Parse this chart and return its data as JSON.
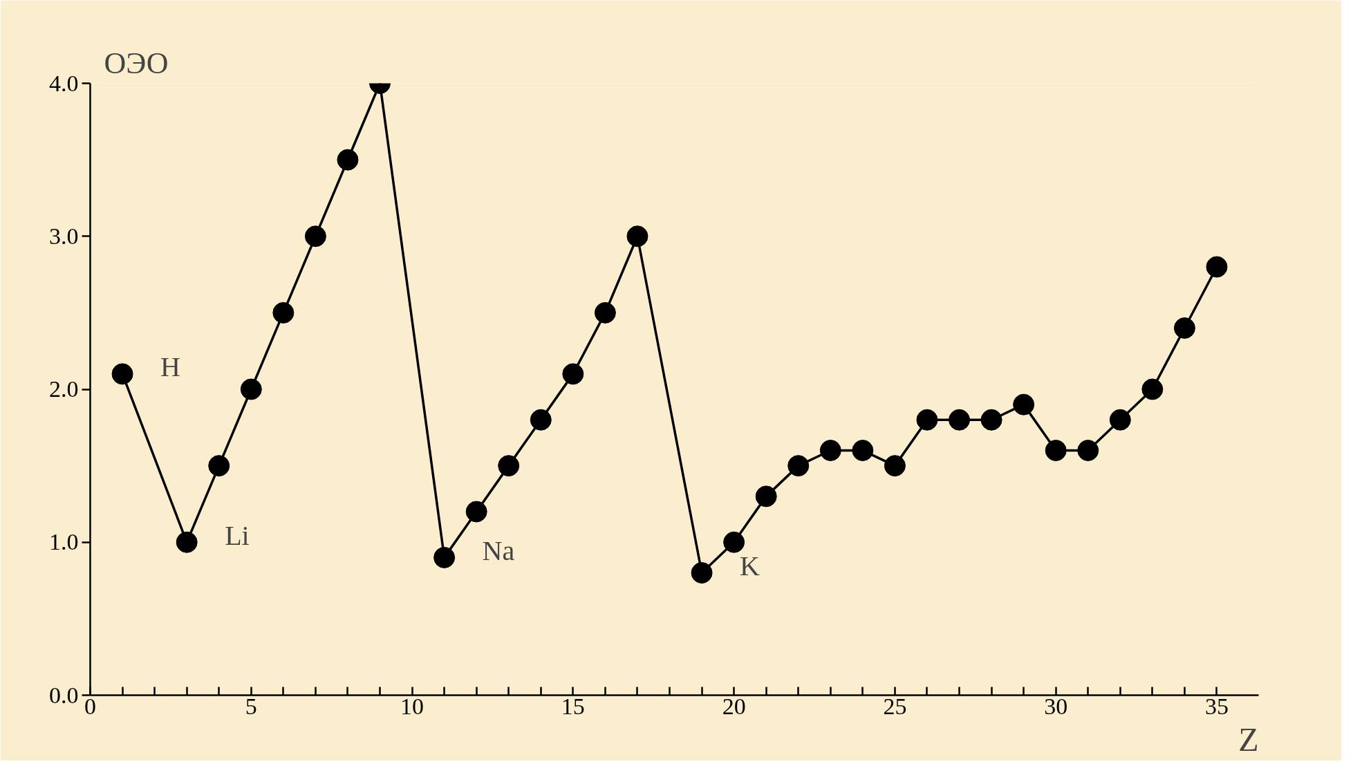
{
  "chart_data": {
    "type": "line",
    "ylabel": "ОЭО",
    "xlabel": "Z",
    "x": [
      1,
      3,
      4,
      5,
      6,
      7,
      8,
      9,
      11,
      12,
      13,
      14,
      15,
      16,
      17,
      19,
      20,
      21,
      22,
      23,
      24,
      25,
      26,
      27,
      28,
      29,
      30,
      31,
      32,
      33,
      34,
      35
    ],
    "series": [
      {
        "color": "#000000",
        "values": [
          2.1,
          1.0,
          1.5,
          2.0,
          2.5,
          3.0,
          3.5,
          4.0,
          0.9,
          1.2,
          1.5,
          1.8,
          2.1,
          2.5,
          3.0,
          0.8,
          1.0,
          1.3,
          1.5,
          1.6,
          1.6,
          1.5,
          1.8,
          1.8,
          1.8,
          1.9,
          1.6,
          1.6,
          1.8,
          2.0,
          2.4,
          2.8
        ]
      }
    ],
    "xlim": [
      0,
      36.3
    ],
    "ylim": [
      0,
      4.0
    ],
    "xticks": [
      0,
      {
        "value": 1,
        "label": null
      },
      {
        "value": 2,
        "label": null
      },
      {
        "value": 3,
        "label": null
      },
      {
        "value": 4,
        "label": null
      },
      5,
      {
        "value": 6,
        "label": null
      },
      {
        "value": 7,
        "label": null
      },
      {
        "value": 8,
        "label": null
      },
      {
        "value": 9,
        "label": null
      },
      10,
      {
        "value": 11,
        "label": null
      },
      {
        "value": 12,
        "label": null
      },
      {
        "value": 13,
        "label": null
      },
      {
        "value": 14,
        "label": null
      },
      15,
      {
        "value": 16,
        "label": null
      },
      {
        "value": 17,
        "label": null
      },
      {
        "value": 18,
        "label": null
      },
      {
        "value": 19,
        "label": null
      },
      20,
      {
        "value": 21,
        "label": null
      },
      {
        "value": 22,
        "label": null
      },
      {
        "value": 23,
        "label": null
      },
      {
        "value": 24,
        "label": null
      },
      25,
      {
        "value": 26,
        "label": null
      },
      {
        "value": 27,
        "label": null
      },
      {
        "value": 28,
        "label": null
      },
      {
        "value": 29,
        "label": null
      },
      30,
      {
        "value": 31,
        "label": null
      },
      {
        "value": 32,
        "label": null
      },
      {
        "value": 33,
        "label": null
      },
      {
        "value": 34,
        "label": null
      },
      35
    ],
    "yticks": [
      {
        "value": 0,
        "label": "0.0"
      },
      {
        "value": 1,
        "label": "1.0"
      },
      {
        "value": 2,
        "label": "2.0"
      },
      {
        "value": 3,
        "label": "3.0"
      },
      {
        "value": 4,
        "label": "4.0"
      }
    ],
    "annotations": [
      {
        "text": "H",
        "x": 1,
        "y": 2.1
      },
      {
        "text": "Li",
        "x": 3,
        "y": 1.0
      },
      {
        "text": "Na",
        "x": 11,
        "y": 0.9
      },
      {
        "text": "K",
        "x": 19,
        "y": 0.8
      }
    ],
    "grid": false,
    "marker": "circle",
    "line_style": "solid"
  }
}
